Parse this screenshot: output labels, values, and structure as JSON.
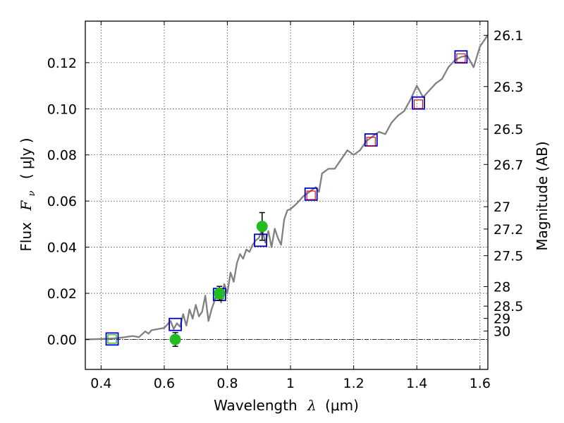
{
  "chart_data": {
    "type": "line",
    "xlabel_text": "Wavelength",
    "xlabel_symbol": "λ",
    "xlabel_unit": "(μm)",
    "ylabel_text": "Flux",
    "ylabel_symbol": "F",
    "ylabel_sub": "ν",
    "ylabel_unit": "( μJy )",
    "y2label": "Magnitude (AB)",
    "xlim": [
      0.35,
      1.625
    ],
    "ylim": [
      -0.013,
      0.138
    ],
    "grid": true,
    "x_ticks": [
      {
        "value": 0.4,
        "label": "0.4"
      },
      {
        "value": 0.6,
        "label": "0.6"
      },
      {
        "value": 0.8,
        "label": "0.8"
      },
      {
        "value": 1.0,
        "label": "1"
      },
      {
        "value": 1.2,
        "label": "1.2"
      },
      {
        "value": 1.4,
        "label": "1.4"
      },
      {
        "value": 1.6,
        "label": "1.6"
      }
    ],
    "y_ticks": [
      {
        "value": 0.0,
        "label": "0.00"
      },
      {
        "value": 0.02,
        "label": "0.02"
      },
      {
        "value": 0.04,
        "label": "0.04"
      },
      {
        "value": 0.06,
        "label": "0.06"
      },
      {
        "value": 0.08,
        "label": "0.08"
      },
      {
        "value": 0.1,
        "label": "0.10"
      },
      {
        "value": 0.12,
        "label": "0.12"
      }
    ],
    "mag_ticks": [
      {
        "mag": 26.1,
        "label": "26.1"
      },
      {
        "mag": 26.3,
        "label": "26.3"
      },
      {
        "mag": 26.5,
        "label": "26.5"
      },
      {
        "mag": 26.7,
        "label": "26.7"
      },
      {
        "mag": 27.0,
        "label": "27"
      },
      {
        "mag": 27.2,
        "label": "27.2"
      },
      {
        "mag": 27.5,
        "label": "27.5"
      },
      {
        "mag": 28.0,
        "label": "28"
      },
      {
        "mag": 28.5,
        "label": "28.5"
      },
      {
        "mag": 29.0,
        "label": "29"
      },
      {
        "mag": 30.0,
        "label": "30"
      }
    ],
    "model_spectrum": {
      "color": "#808080",
      "x": [
        0.35,
        0.4,
        0.45,
        0.5,
        0.52,
        0.54,
        0.55,
        0.56,
        0.58,
        0.6,
        0.62,
        0.63,
        0.64,
        0.65,
        0.66,
        0.67,
        0.68,
        0.69,
        0.7,
        0.71,
        0.72,
        0.73,
        0.74,
        0.75,
        0.76,
        0.77,
        0.78,
        0.79,
        0.8,
        0.81,
        0.82,
        0.83,
        0.84,
        0.85,
        0.86,
        0.87,
        0.88,
        0.89,
        0.9,
        0.91,
        0.92,
        0.93,
        0.94,
        0.95,
        0.96,
        0.97,
        0.98,
        0.99,
        1.0,
        1.02,
        1.04,
        1.06,
        1.08,
        1.09,
        1.1,
        1.12,
        1.14,
        1.16,
        1.18,
        1.2,
        1.22,
        1.24,
        1.26,
        1.28,
        1.3,
        1.32,
        1.34,
        1.36,
        1.38,
        1.4,
        1.42,
        1.44,
        1.46,
        1.48,
        1.5,
        1.52,
        1.54,
        1.56,
        1.58,
        1.6,
        1.625
      ],
      "y": [
        0.0,
        0.0002,
        0.0005,
        0.0015,
        0.001,
        0.0035,
        0.0025,
        0.004,
        0.0045,
        0.005,
        0.008,
        0.0045,
        0.007,
        0.0055,
        0.011,
        0.006,
        0.013,
        0.009,
        0.015,
        0.01,
        0.012,
        0.019,
        0.008,
        0.013,
        0.017,
        0.022,
        0.016,
        0.024,
        0.02,
        0.029,
        0.025,
        0.033,
        0.037,
        0.035,
        0.039,
        0.038,
        0.041,
        0.043,
        0.044,
        0.048,
        0.042,
        0.047,
        0.04,
        0.048,
        0.044,
        0.041,
        0.052,
        0.056,
        0.0565,
        0.059,
        0.062,
        0.064,
        0.066,
        0.064,
        0.072,
        0.074,
        0.074,
        0.078,
        0.082,
        0.08,
        0.082,
        0.086,
        0.088,
        0.09,
        0.089,
        0.094,
        0.097,
        0.099,
        0.104,
        0.11,
        0.105,
        0.108,
        0.111,
        0.113,
        0.118,
        0.121,
        0.1225,
        0.123,
        0.118,
        0.127,
        0.132
      ]
    },
    "series": [
      {
        "name": "",
        "marker": "square-blue",
        "color": "#0000cc",
        "x": [
          0.435,
          0.635,
          0.775,
          0.905,
          1.065,
          1.255,
          1.405,
          1.54
        ],
        "y": [
          0.0002,
          0.0065,
          0.0195,
          0.043,
          0.063,
          0.0865,
          0.1025,
          0.1225
        ]
      },
      {
        "name": "",
        "marker": "square-red",
        "color": "#d00000",
        "x": [
          1.065,
          1.255,
          1.405,
          1.54
        ],
        "y": [
          0.0625,
          0.0858,
          0.102,
          0.122
        ]
      },
      {
        "name": "",
        "marker": "square-green",
        "color": "#00aa00",
        "x": [
          0.435,
          0.775
        ],
        "y": [
          0.0002,
          0.0195
        ]
      },
      {
        "name": "",
        "marker": "circle-green",
        "color": "#22bb22",
        "x": [
          0.635,
          0.775,
          0.91
        ],
        "y": [
          0.0,
          0.02,
          0.049
        ],
        "yerr": [
          0.003,
          0.003,
          0.006
        ]
      }
    ],
    "zero_line_color": "#000000"
  }
}
